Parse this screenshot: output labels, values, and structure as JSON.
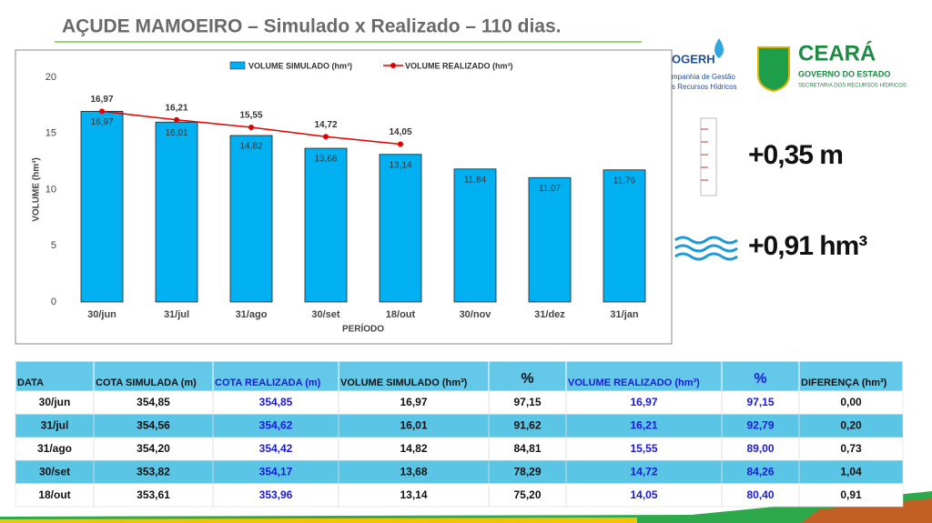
{
  "header": {
    "title": "AÇUDE MAMOEIRO – Simulado x Realizado – 110 dias."
  },
  "logos": {
    "cogerh": "OGERH",
    "cogerh_line1": "mpanhia de Gestão",
    "cogerh_line2": "s Recursos Hídricos",
    "ceara": "CEARÁ",
    "governo": "GOVERNO DO ESTADO",
    "secretaria": "SECRETARIA DOS RECURSOS HÍDRICOS"
  },
  "indicators": {
    "level": "+0,35 m",
    "volume": "+0,91 hm³"
  },
  "chart_data": {
    "type": "bar",
    "x_label": "PERÍODO",
    "y_label": "VOLUME (hm³)",
    "categories": [
      "30/jun",
      "31/jul",
      "31/ago",
      "30/set",
      "18/out",
      "30/nov",
      "31/dez",
      "31/jan"
    ],
    "series": [
      {
        "name": "VOLUME SIMULADO (hm³)",
        "type": "bar",
        "color": "#00b0f0",
        "values": [
          16.97,
          16.01,
          14.82,
          13.68,
          13.14,
          11.84,
          11.07,
          11.76
        ],
        "value_labels": [
          "16,97",
          "16,01",
          "14,82",
          "13,68",
          "13,14",
          "11,84",
          "11,07",
          "11,76"
        ]
      },
      {
        "name": "VOLUME REALIZADO (hm³)",
        "type": "line",
        "color": "#e00000",
        "values": [
          16.97,
          16.21,
          15.55,
          14.72,
          14.05,
          null,
          null,
          null
        ],
        "value_labels": [
          "16,97",
          "16,21",
          "15,55",
          "14,72",
          "14,05",
          null,
          null,
          null
        ]
      }
    ],
    "ylim": [
      0,
      20
    ],
    "yticks": [
      0,
      5,
      10,
      15,
      20
    ],
    "grid": false
  },
  "table": {
    "header": [
      "DATA",
      "COTA SIMULADA (m)",
      "COTA REALIZADA (m)",
      "VOLUME SIMULADO (hm³)",
      "%",
      "VOLUME REALIZADO (hm³)",
      "%",
      "DIFERENÇA (hm³)"
    ],
    "rows": [
      [
        "30/jun",
        "354,85",
        "354,85",
        "16,97",
        "97,15",
        "16,97",
        "97,15",
        "0,00"
      ],
      [
        "31/jul",
        "354,56",
        "354,62",
        "16,01",
        "91,62",
        "16,21",
        "92,79",
        "0,20"
      ],
      [
        "31/ago",
        "354,20",
        "354,42",
        "14,82",
        "84,81",
        "15,55",
        "89,00",
        "0,73"
      ],
      [
        "30/set",
        "353,82",
        "354,17",
        "13,68",
        "78,29",
        "14,72",
        "84,26",
        "1,04"
      ],
      [
        "18/out",
        "353,61",
        "353,96",
        "13,14",
        "75,20",
        "14,05",
        "80,40",
        "0,91"
      ]
    ]
  }
}
